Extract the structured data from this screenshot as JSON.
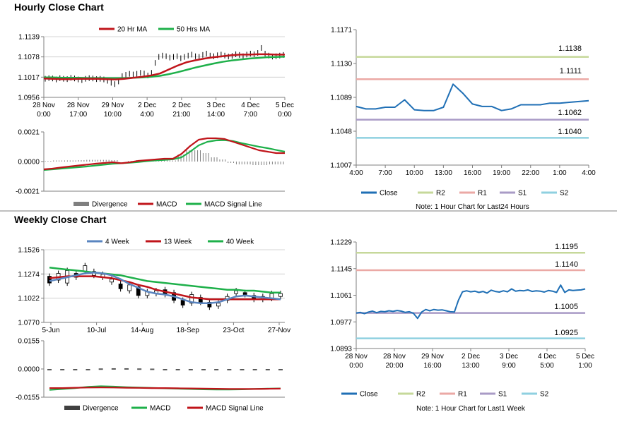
{
  "sections": {
    "hourly_title": "Hourly Close Chart",
    "weekly_title": "Weekly Close Chart"
  },
  "colors": {
    "ma20": "#c0141a",
    "ma50": "#1eb04a",
    "close": "#1f6fb5",
    "r2": "#c6d89a",
    "r1": "#eba9a5",
    "s1": "#a99bc6",
    "s2": "#8fd0e0",
    "divergence": "#7f7f7f",
    "axis": "#7f7f7f"
  },
  "chart_data": [
    {
      "id": "hourly_price",
      "type": "line",
      "legend": [
        "20 Hr MA",
        "50 Hrs MA"
      ],
      "x_ticks": [
        [
          "28 Nov",
          "0:00"
        ],
        [
          "28 Nov",
          "17:00"
        ],
        [
          "29 Nov",
          "10:00"
        ],
        [
          "2 Dec",
          "4:00"
        ],
        [
          "2 Dec",
          "21:00"
        ],
        [
          "3 Dec",
          "14:00"
        ],
        [
          "4 Dec",
          "7:00"
        ],
        [
          "5 Dec",
          "0:00"
        ]
      ],
      "y_ticks": [
        "1.1139",
        "1.1078",
        "1.1017",
        "1.0956"
      ],
      "ylim": [
        1.0956,
        1.1139
      ],
      "grid": true,
      "series": [
        {
          "name": "20 Hr MA",
          "values": [
            1.1013,
            1.1012,
            1.1011,
            1.1011,
            1.1012,
            1.1012,
            1.1012,
            1.1011,
            1.101,
            1.1012,
            1.1015,
            1.1018,
            1.1022,
            1.1028,
            1.104,
            1.1052,
            1.1062,
            1.1068,
            1.1073,
            1.1077,
            1.108,
            1.1083,
            1.1085,
            1.1085,
            1.1086,
            1.1086,
            1.1085,
            1.1085
          ]
        },
        {
          "name": "50 Hrs MA",
          "values": [
            1.1016,
            1.1016,
            1.1015,
            1.1015,
            1.1015,
            1.1014,
            1.1014,
            1.1014,
            1.1014,
            1.1014,
            1.1015,
            1.1016,
            1.1018,
            1.1021,
            1.1026,
            1.1032,
            1.1039,
            1.1046,
            1.1052,
            1.1058,
            1.1063,
            1.1067,
            1.107,
            1.1073,
            1.1075,
            1.1077,
            1.1078,
            1.1079
          ]
        }
      ],
      "candles": [
        1.1012,
        1.1014,
        1.1013,
        1.101,
        1.1014,
        1.1012,
        1.1011,
        1.1015,
        1.1013,
        1.101,
        1.1008,
        1.1012,
        1.1014,
        1.1013,
        1.1011,
        1.1012,
        1.101,
        1.1006,
        1.1,
        1.0996,
        1.1004,
        1.102,
        1.1024,
        1.1027,
        1.1025,
        1.1027,
        1.103,
        1.1028,
        1.1022,
        1.103,
        1.106,
        1.1078,
        1.1082,
        1.108,
        1.1076,
        1.1078,
        1.108,
        1.1074,
        1.1078,
        1.1082,
        1.1085,
        1.108,
        1.1078,
        1.1084,
        1.1088,
        1.1082,
        1.108,
        1.1083,
        1.1085,
        1.1082,
        1.1079,
        1.1081,
        1.1086,
        1.1084,
        1.108,
        1.1085,
        1.1088,
        1.1086,
        1.109,
        1.1105,
        1.1088,
        1.1082,
        1.1079,
        1.108,
        1.1082,
        1.1084
      ]
    },
    {
      "id": "hourly_macd",
      "type": "line",
      "legend": [
        "Divergence",
        "MACD",
        "MACD Signal Line"
      ],
      "y_ticks": [
        "0.0021",
        "0.0000",
        "-0.0021"
      ],
      "ylim": [
        -0.0021,
        0.0021
      ],
      "series": [
        {
          "name": "MACD",
          "values": [
            -0.00055,
            -0.0005,
            -0.00042,
            -0.00035,
            -0.00028,
            -0.00022,
            -0.00015,
            -0.0001,
            -5e-05,
            -0.00012,
            -5e-05,
            5e-05,
            0.0001,
            0.00015,
            0.0002,
            0.0002,
            0.00055,
            0.0011,
            0.00155,
            0.00165,
            0.00165,
            0.0016,
            0.0014,
            0.0012,
            0.001,
            0.0008,
            0.0007,
            0.0006,
            0.0006
          ]
        },
        {
          "name": "MACD Signal Line",
          "values": [
            -0.0006,
            -0.00055,
            -0.0005,
            -0.00045,
            -0.0004,
            -0.00035,
            -0.00028,
            -0.00022,
            -0.00016,
            -0.00012,
            -8e-05,
            -3e-05,
            3e-05,
            8e-05,
            0.00012,
            0.00016,
            0.0003,
            0.0007,
            0.00115,
            0.0014,
            0.0015,
            0.00152,
            0.00145,
            0.0013,
            0.00118,
            0.00105,
            0.00095,
            0.00082,
            0.0007
          ]
        }
      ],
      "divergence": [
        5e-05,
        8e-05,
        8e-05,
        8e-05,
        0.0001,
        0.00012,
        0.00012,
        0.00012,
        0.0001,
        0.0,
        4e-05,
        0.0001,
        0.0001,
        0.0001,
        0.0001,
        8e-05,
        0.0005,
        0.0008,
        0.0008,
        0.0006,
        0.0003,
        0.00015,
        -0.0001,
        -0.0002,
        -0.0002,
        -0.00025,
        -0.00025,
        -0.0002,
        -0.0002
      ]
    },
    {
      "id": "hourly_24h",
      "type": "line",
      "legend": [
        "Close",
        "R2",
        "R1",
        "S1",
        "S2"
      ],
      "x_ticks": [
        "4:00",
        "7:00",
        "10:00",
        "13:00",
        "16:00",
        "19:00",
        "22:00",
        "1:00",
        "4:00"
      ],
      "y_ticks": [
        "1.1171",
        "1.1130",
        "1.1089",
        "1.1048",
        "1.1007"
      ],
      "ylim": [
        1.1007,
        1.1171
      ],
      "levels": {
        "R2": 1.1138,
        "R1": 1.1111,
        "S1": 1.1062,
        "S2": 1.104
      },
      "level_labels": [
        "1.1138",
        "1.1111",
        "1.1062",
        "1.1040"
      ],
      "close": [
        1.1078,
        1.1075,
        1.1075,
        1.1077,
        1.1077,
        1.1086,
        1.1074,
        1.1073,
        1.1073,
        1.1077,
        1.1105,
        1.1094,
        1.1081,
        1.1078,
        1.1078,
        1.1073,
        1.1075,
        1.108,
        1.108,
        1.108,
        1.1082,
        1.1082,
        1.1083,
        1.1084,
        1.1085
      ],
      "note": "Note: 1 Hour Chart for Last24 Hours"
    },
    {
      "id": "weekly_price",
      "type": "line",
      "legend": [
        "4 Week",
        "13 Week",
        "40 Week"
      ],
      "x_ticks": [
        "5-Jun",
        "10-Jul",
        "14-Aug",
        "18-Sep",
        "23-Oct",
        "27-Nov"
      ],
      "y_ticks": [
        "1.1526",
        "1.1274",
        "1.1022",
        "1.0770"
      ],
      "ylim": [
        1.077,
        1.1526
      ],
      "series": [
        {
          "name": "4 Week",
          "values": [
            1.12,
            1.122,
            1.124,
            1.126,
            1.128,
            1.129,
            1.128,
            1.126,
            1.122,
            1.117,
            1.113,
            1.109,
            1.107,
            1.106,
            1.104,
            1.101,
            1.098,
            1.097,
            1.097,
            1.098,
            1.101,
            1.104,
            1.105,
            1.104,
            1.103,
            1.102,
            1.101
          ]
        },
        {
          "name": "13 Week",
          "values": [
            1.123,
            1.124,
            1.125,
            1.125,
            1.125,
            1.125,
            1.124,
            1.123,
            1.121,
            1.119,
            1.116,
            1.114,
            1.111,
            1.109,
            1.107,
            1.105,
            1.103,
            1.102,
            1.101,
            1.101,
            1.101,
            1.101,
            1.101,
            1.101,
            1.101,
            1.101,
            1.101
          ]
        },
        {
          "name": "40 Week",
          "values": [
            1.134,
            1.133,
            1.132,
            1.131,
            1.13,
            1.129,
            1.128,
            1.127,
            1.126,
            1.124,
            1.122,
            1.12,
            1.119,
            1.118,
            1.117,
            1.116,
            1.115,
            1.114,
            1.113,
            1.112,
            1.111,
            1.111,
            1.11,
            1.11,
            1.109,
            1.108,
            1.108
          ]
        }
      ],
      "candles": [
        [
          1.125,
          1.118
        ],
        [
          1.121,
          1.128
        ],
        [
          1.118,
          1.131
        ],
        [
          1.128,
          1.124
        ],
        [
          1.13,
          1.136
        ],
        [
          1.126,
          1.13
        ],
        [
          1.124,
          1.127
        ],
        [
          1.119,
          1.122
        ],
        [
          1.117,
          1.112
        ],
        [
          1.11,
          1.116
        ],
        [
          1.114,
          1.105
        ],
        [
          1.105,
          1.109
        ],
        [
          1.107,
          1.11
        ],
        [
          1.111,
          1.106
        ],
        [
          1.108,
          1.1
        ],
        [
          1.1,
          1.095
        ],
        [
          1.097,
          1.106
        ],
        [
          1.103,
          1.098
        ],
        [
          1.098,
          1.093
        ],
        [
          1.094,
          1.097
        ],
        [
          1.1,
          1.104
        ],
        [
          1.107,
          1.11
        ],
        [
          1.108,
          1.106
        ],
        [
          1.105,
          1.101
        ],
        [
          1.101,
          1.104
        ],
        [
          1.102,
          1.107
        ],
        [
          1.104,
          1.107
        ]
      ]
    },
    {
      "id": "weekly_macd",
      "type": "line",
      "legend": [
        "Divergence",
        "MACD",
        "MACD Signal Line"
      ],
      "y_ticks": [
        "0.0155",
        "0.0000",
        "-0.0155"
      ],
      "ylim": [
        -0.0155,
        0.0155
      ],
      "series": [
        {
          "name": "MACD",
          "values": [
            -0.0115,
            -0.011,
            -0.0105,
            -0.0098,
            -0.0095,
            -0.0097,
            -0.01,
            -0.0102,
            -0.0104,
            -0.0106,
            -0.0108,
            -0.011,
            -0.0112,
            -0.0113,
            -0.0113,
            -0.0112,
            -0.011,
            -0.0108,
            -0.0107
          ]
        },
        {
          "name": "MACD Signal Line",
          "values": [
            -0.0105,
            -0.0105,
            -0.0103,
            -0.0102,
            -0.0101,
            -0.0102,
            -0.0103,
            -0.0104,
            -0.0105,
            -0.0105,
            -0.0106,
            -0.0107,
            -0.0108,
            -0.0109,
            -0.011,
            -0.011,
            -0.011,
            -0.0109,
            -0.0108
          ]
        }
      ],
      "divergence": [
        -0.0005,
        -0.0004,
        -0.0002,
        0.0,
        0.0003,
        0.0004,
        0.0004,
        0.0003,
        0.0002,
        0.0,
        -0.0002,
        -0.0004,
        -0.0005,
        -0.0006,
        -0.0006,
        -0.0005,
        -0.0003,
        -0.0002,
        0.0
      ]
    },
    {
      "id": "weekly_1w",
      "type": "line",
      "legend": [
        "Close",
        "R2",
        "R1",
        "S1",
        "S2"
      ],
      "x_ticks": [
        [
          "28 Nov",
          "0:00"
        ],
        [
          "28 Nov",
          "20:00"
        ],
        [
          "29 Nov",
          "16:00"
        ],
        [
          "2 Dec",
          "13:00"
        ],
        [
          "3 Dec",
          "9:00"
        ],
        [
          "4 Dec",
          "5:00"
        ],
        [
          "5 Dec",
          "1:00"
        ]
      ],
      "y_ticks": [
        "1.1229",
        "1.1145",
        "1.1061",
        "1.0977",
        "1.0893"
      ],
      "ylim": [
        1.0893,
        1.1229
      ],
      "levels": {
        "R2": 1.1195,
        "R1": 1.114,
        "S1": 1.1005,
        "S2": 1.0925
      },
      "level_labels": [
        "1.1195",
        "1.1140",
        "1.1005",
        "1.0925"
      ],
      "close": [
        1.1005,
        1.1007,
        1.1003,
        1.1008,
        1.1011,
        1.1006,
        1.101,
        1.1009,
        1.1012,
        1.101,
        1.1013,
        1.1011,
        1.1007,
        1.1009,
        1.1004,
        1.0988,
        1.1008,
        1.1016,
        1.1012,
        1.1016,
        1.1014,
        1.1015,
        1.1012,
        1.1009,
        1.1008,
        1.1045,
        1.1072,
        1.1075,
        1.1072,
        1.1074,
        1.107,
        1.1073,
        1.1068,
        1.1077,
        1.1073,
        1.1071,
        1.1075,
        1.1072,
        1.1081,
        1.1074,
        1.1076,
        1.1075,
        1.1078,
        1.1073,
        1.1075,
        1.1074,
        1.1071,
        1.1076,
        1.1074,
        1.107,
        1.1093,
        1.107,
        1.1078,
        1.1076,
        1.1077,
        1.1078,
        1.1081
      ],
      "note": "Note: 1 Hour Chart for Last1 Week"
    }
  ]
}
